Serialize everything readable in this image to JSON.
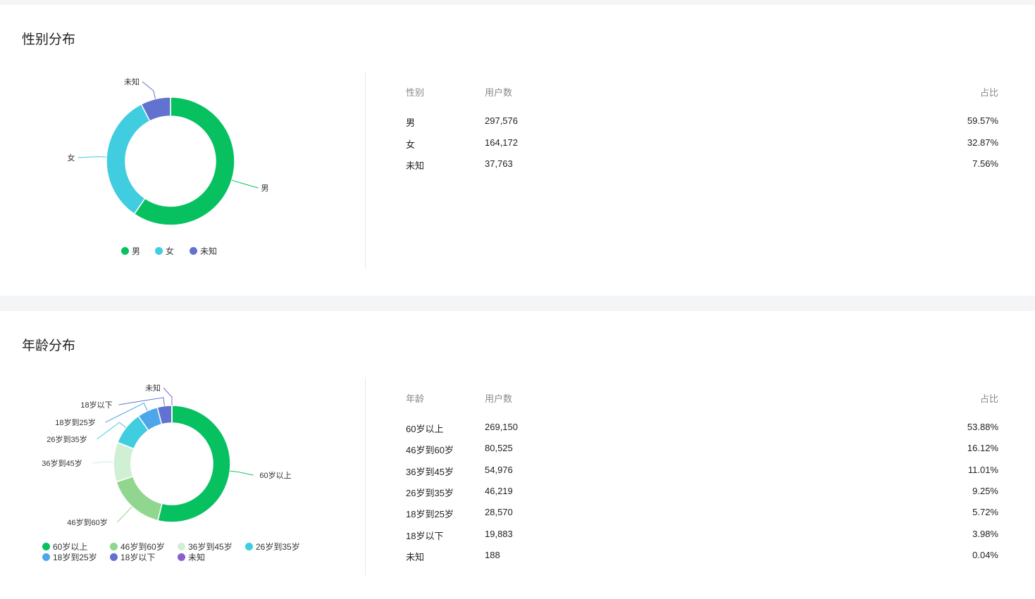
{
  "gender": {
    "title": "性别分布",
    "headers": [
      "性别",
      "用户数",
      "占比"
    ],
    "rows": [
      [
        "男",
        "297,576",
        "59.57%"
      ],
      [
        "女",
        "164,172",
        "32.87%"
      ],
      [
        "未知",
        "37,763",
        "7.56%"
      ]
    ]
  },
  "age": {
    "title": "年龄分布",
    "headers": [
      "年龄",
      "用户数",
      "占比"
    ],
    "rows": [
      [
        "60岁以上",
        "269,150",
        "53.88%"
      ],
      [
        "46岁到60岁",
        "80,525",
        "16.12%"
      ],
      [
        "36岁到45岁",
        "54,976",
        "11.01%"
      ],
      [
        "26岁到35岁",
        "46,219",
        "9.25%"
      ],
      [
        "18岁到25岁",
        "28,570",
        "5.72%"
      ],
      [
        "18岁以下",
        "19,883",
        "3.98%"
      ],
      [
        "未知",
        "188",
        "0.04%"
      ]
    ]
  },
  "chart_data": [
    {
      "type": "pie",
      "variant": "donut",
      "categories": [
        "男",
        "女",
        "未知"
      ],
      "values": [
        297576,
        164172,
        37763
      ],
      "colors": [
        "#07c160",
        "#40cde0",
        "#6172cf"
      ],
      "legend": "bottom"
    },
    {
      "type": "pie",
      "variant": "donut",
      "categories": [
        "60岁以上",
        "46岁到60岁",
        "36岁到45岁",
        "26岁到35岁",
        "18岁到25岁",
        "18岁以下",
        "未知"
      ],
      "values": [
        269150,
        80525,
        54976,
        46219,
        28570,
        19883,
        188
      ],
      "colors": [
        "#07c160",
        "#91d68e",
        "#d1efd3",
        "#40cde0",
        "#4ea6ea",
        "#6172cf",
        "#8b5fd0"
      ],
      "legend": "bottom"
    }
  ]
}
